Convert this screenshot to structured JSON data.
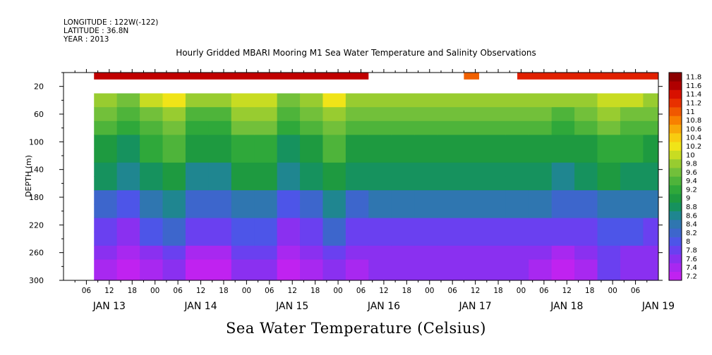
{
  "header": {
    "longitude": "LONGITUDE : 122W(-122)",
    "latitude": "LATITUDE : 36.8N",
    "year": "YEAR : 2013"
  },
  "chart_data": {
    "type": "heatmap",
    "title": "Hourly Gridded MBARI Mooring M1 Sea Water Temperature and Salinity Observations",
    "colorbar_title": "Sea Water Temperature (Celsius)",
    "ylabel": "DEPTH (m)",
    "ylim": [
      300,
      0
    ],
    "y_ticks": [
      20,
      60,
      100,
      140,
      180,
      220,
      260,
      300
    ],
    "x_hours_range": [
      0,
      156
    ],
    "x_hour_ticks": [
      "06",
      "12",
      "18",
      "00",
      "06",
      "12",
      "18",
      "00",
      "06",
      "12",
      "18",
      "00",
      "06",
      "12",
      "18",
      "00",
      "06",
      "12",
      "18",
      "00",
      "06",
      "12",
      "18",
      "00",
      "06"
    ],
    "x_day_labels": [
      "JAN 13",
      "JAN 14",
      "JAN 15",
      "JAN 16",
      "JAN 17",
      "JAN 18",
      "JAN 19"
    ],
    "color_levels": [
      7.2,
      7.4,
      7.6,
      7.8,
      8,
      8.2,
      8.4,
      8.6,
      8.8,
      9,
      9.2,
      9.4,
      9.6,
      9.8,
      10,
      10.2,
      10.4,
      10.6,
      10.8,
      11,
      11.2,
      11.4,
      11.6,
      11.8
    ],
    "colors": [
      "#c022f0",
      "#a828f0",
      "#8a30f0",
      "#6a40f0",
      "#4d55e8",
      "#3d66cc",
      "#2f76b0",
      "#1f8690",
      "#16925e",
      "#1e9a40",
      "#2fa83a",
      "#4eb43a",
      "#72c03a",
      "#98cc30",
      "#c8dc22",
      "#f0e418",
      "#f8cc10",
      "#f8a808",
      "#f88000",
      "#f05800",
      "#e83000",
      "#d81000",
      "#b00000",
      "#8c0000"
    ],
    "x_values_hours": [
      8,
      14,
      20,
      26,
      32,
      38,
      44,
      50,
      56,
      62,
      68,
      74,
      80,
      86,
      92,
      98,
      104,
      110,
      116,
      122,
      128,
      134,
      140,
      146,
      152,
      156
    ],
    "depths_m": [
      40,
      60,
      80,
      100,
      120,
      140,
      160,
      180,
      200,
      220,
      240,
      260,
      280,
      300
    ],
    "surface_gaps_hours": [
      [
        80,
        105
      ],
      [
        109,
        119
      ]
    ]
  }
}
